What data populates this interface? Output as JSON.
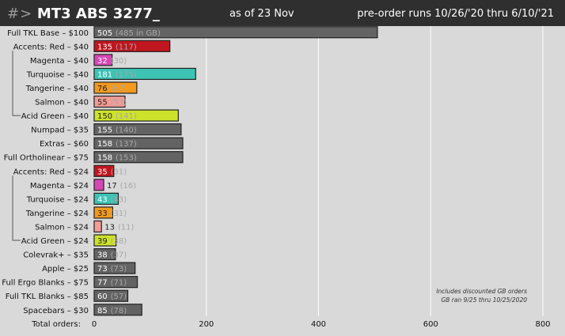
{
  "header": {
    "logo_prefix": "#>",
    "title": "MT3 ABS 3277_",
    "as_of_label": "as of",
    "as_of_date": "23 Nov",
    "preorder_text": "pre-order runs 10/26/'20 thru 6/10/'21"
  },
  "footnote": {
    "line1": "Includes discounted GB orders",
    "line2": "GB ran 9/25 thru 10/25/2020"
  },
  "colors": {
    "header_bg": "#2f2f2f",
    "plot_bg": "#d9d9d9",
    "gray": "#636363",
    "red": "#c0161f",
    "magenta": "#d548b4",
    "turquoise": "#3cc3b4",
    "tangerine": "#f39a1e",
    "salmon": "#f29c95",
    "acid_green": "#cde22b"
  },
  "chart_data": {
    "type": "bar",
    "orientation": "horizontal",
    "xlabel": "Total orders:",
    "xlim": [
      0,
      800
    ],
    "xticks": [
      0,
      200,
      400,
      600,
      800
    ],
    "grid": true,
    "bars": [
      {
        "label": "Full TKL Base – $100",
        "value": 505,
        "secondary": "(485 in GB)",
        "color": "gray"
      },
      {
        "label": "Accents:    Red – $40",
        "value": 135,
        "secondary": "(117)",
        "color": "red"
      },
      {
        "label": "Magenta – $40",
        "value": 32,
        "secondary": "(30)",
        "color": "magenta"
      },
      {
        "label": "Turquoise – $40",
        "value": 181,
        "secondary": "(175)",
        "color": "turquoise"
      },
      {
        "label": "Tangerine – $40",
        "value": 76,
        "secondary": "(67)",
        "color": "tangerine"
      },
      {
        "label": "Salmon – $40",
        "value": 55,
        "secondary": "(53)",
        "color": "salmon"
      },
      {
        "label": "Acid Green – $40",
        "value": 150,
        "secondary": "(141)",
        "color": "acid_green"
      },
      {
        "label": "Numpad – $35",
        "value": 155,
        "secondary": "(140)",
        "color": "gray"
      },
      {
        "label": "Extras – $60",
        "value": 158,
        "secondary": "(137)",
        "color": "gray"
      },
      {
        "label": "Full Ortholinear – $75",
        "value": 158,
        "secondary": "(153)",
        "color": "gray"
      },
      {
        "label": "Accents:    Red – $24",
        "value": 35,
        "secondary": "(31)",
        "color": "red"
      },
      {
        "label": "Magenta – $24",
        "value": 17,
        "secondary": "(16)",
        "color": "magenta"
      },
      {
        "label": "Turquoise – $24",
        "value": 43,
        "secondary": "(43)",
        "color": "turquoise"
      },
      {
        "label": "Tangerine – $24",
        "value": 33,
        "secondary": "(31)",
        "color": "tangerine"
      },
      {
        "label": "Salmon – $24",
        "value": 13,
        "secondary": "(11)",
        "color": "salmon"
      },
      {
        "label": "Acid Green – $24",
        "value": 39,
        "secondary": "(38)",
        "color": "acid_green"
      },
      {
        "label": "Colevrak+ – $35",
        "value": 38,
        "secondary": "(37)",
        "color": "gray"
      },
      {
        "label": "Apple – $25",
        "value": 73,
        "secondary": "(73)",
        "color": "gray"
      },
      {
        "label": "Full Ergo Blanks – $75",
        "value": 77,
        "secondary": "(71)",
        "color": "gray"
      },
      {
        "label": "Full TKL Blanks – $85",
        "value": 60,
        "secondary": "(57)",
        "color": "gray"
      },
      {
        "label": "Spacebars – $30",
        "value": 85,
        "secondary": "(78)",
        "color": "gray"
      }
    ],
    "groups": [
      {
        "first": 1,
        "last": 6
      },
      {
        "first": 10,
        "last": 15
      }
    ]
  }
}
